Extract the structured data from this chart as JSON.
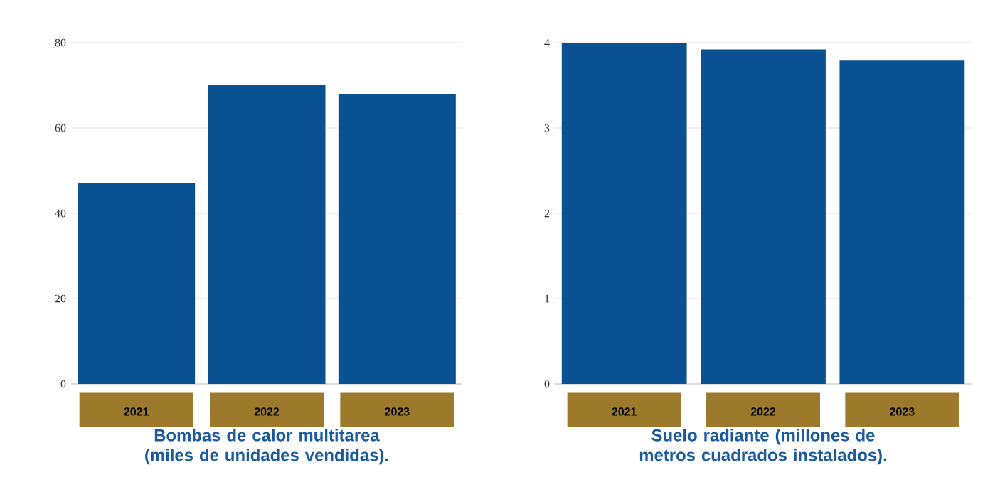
{
  "chart_data": [
    {
      "type": "bar",
      "title": "Bombas de calor multitarea (miles de unidades vendidas).",
      "categories": [
        "2021",
        "2022",
        "2023"
      ],
      "values": [
        47,
        70,
        68
      ],
      "color": "#0a5191",
      "ylim": [
        0,
        80
      ],
      "yticks": [
        0,
        20,
        40,
        60,
        80
      ],
      "grid": "y"
    },
    {
      "type": "bar",
      "title": "Suelo radiante (millones de metros cuadrados instalados).",
      "categories": [
        "2021",
        "2022",
        "2023"
      ],
      "values": [
        4.0,
        3.92,
        3.79
      ],
      "color": "#0a5191",
      "ylim": [
        0,
        4
      ],
      "yticks": [
        0,
        1,
        2,
        3,
        4
      ],
      "grid": "y"
    }
  ]
}
